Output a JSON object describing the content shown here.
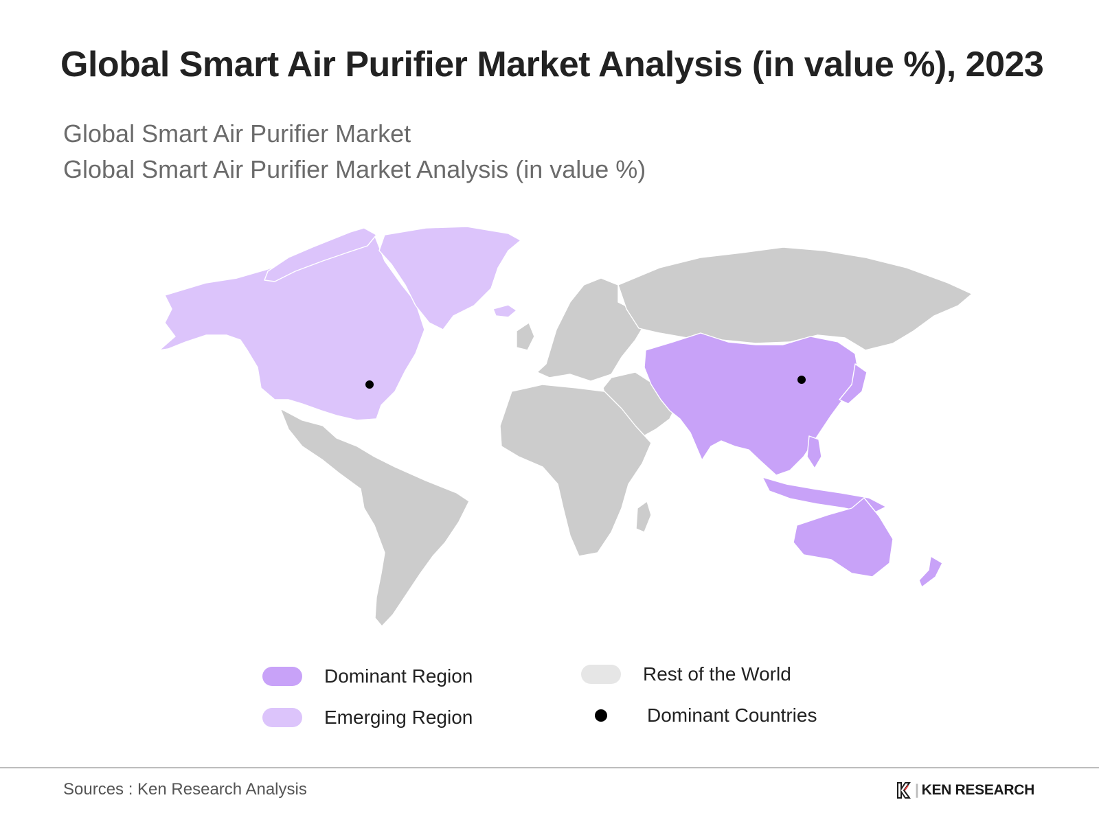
{
  "header": {
    "title": "Global Smart Air Purifier Market Analysis (in value %), 2023",
    "subtitle_1": "Global Smart Air Purifier Market",
    "subtitle_2": "Global Smart Air Purifier Market Analysis (in value %)"
  },
  "map": {
    "regions": [
      {
        "name": "North America",
        "category": "emerging"
      },
      {
        "name": "Greenland",
        "category": "emerging"
      },
      {
        "name": "Asia-Pacific",
        "category": "dominant"
      },
      {
        "name": "Australia",
        "category": "dominant"
      },
      {
        "name": "New Zealand",
        "category": "dominant"
      },
      {
        "name": "Latin America",
        "category": "rest"
      },
      {
        "name": "Europe",
        "category": "rest"
      },
      {
        "name": "Russia & Central Asia",
        "category": "rest"
      },
      {
        "name": "Middle East",
        "category": "rest"
      },
      {
        "name": "Africa",
        "category": "rest"
      }
    ],
    "dominant_country_markers": [
      "United States",
      "China"
    ]
  },
  "legend": {
    "dominant_label": "Dominant Region",
    "emerging_label": "Emerging Region",
    "rest_label": "Rest of the World",
    "countries_label": "Dominant Countries"
  },
  "colors": {
    "dominant": "#c8a2f8",
    "emerging": "#dcc4fb",
    "rest": "#cccccc",
    "rest_legend": "#e6e6e6",
    "marker": "#000000"
  },
  "footer": {
    "source": "Sources : Ken Research Analysis",
    "brand": "KEN RESEARCH",
    "logo": "ken-research-logo"
  }
}
